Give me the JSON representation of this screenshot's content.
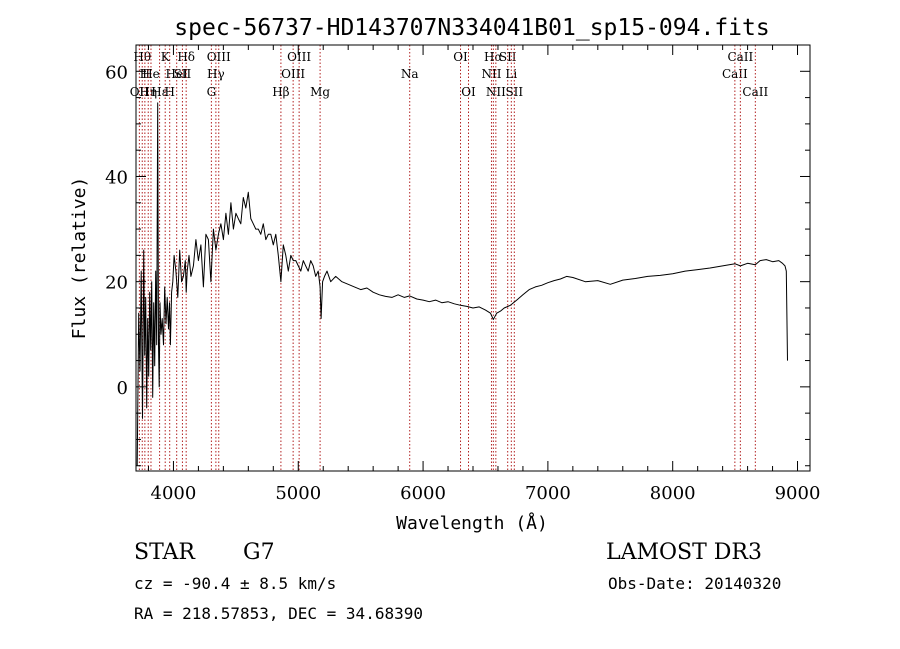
{
  "chart_data": {
    "type": "line",
    "title": "spec-56737-HD143707N334041B01_sp15-094.fits",
    "xlabel": "Wavelength (Å)",
    "ylabel": "Flux (relative)",
    "xlim": [
      3700,
      9100
    ],
    "ylim": [
      -16,
      65
    ],
    "xticks": [
      4000,
      5000,
      6000,
      7000,
      8000,
      9000
    ],
    "yticks": [
      0,
      20,
      40,
      60
    ],
    "x_minor_step": 200,
    "y_minor_step": 5,
    "line_color": "#000000",
    "marker_color": "#b22222",
    "series": [
      {
        "name": "flux",
        "x": [
          3710,
          3722,
          3732,
          3742,
          3752,
          3762,
          3770,
          3778,
          3786,
          3794,
          3802,
          3810,
          3818,
          3826,
          3834,
          3842,
          3850,
          3858,
          3866,
          3874,
          3880,
          3886,
          3892,
          3900,
          3910,
          3920,
          3930,
          3940,
          3950,
          3960,
          3968,
          3976,
          3985,
          3995,
          4005,
          4020,
          4035,
          4050,
          4065,
          4080,
          4095,
          4102,
          4110,
          4125,
          4140,
          4160,
          4180,
          4200,
          4220,
          4240,
          4260,
          4280,
          4300,
          4320,
          4340,
          4360,
          4380,
          4400,
          4420,
          4440,
          4460,
          4480,
          4500,
          4520,
          4540,
          4560,
          4580,
          4600,
          4620,
          4640,
          4660,
          4680,
          4700,
          4720,
          4740,
          4760,
          4780,
          4800,
          4820,
          4840,
          4861,
          4880,
          4900,
          4920,
          4940,
          4960,
          4980,
          5000,
          5020,
          5040,
          5060,
          5080,
          5100,
          5120,
          5140,
          5160,
          5175,
          5183,
          5195,
          5210,
          5230,
          5260,
          5300,
          5350,
          5400,
          5450,
          5500,
          5550,
          5600,
          5650,
          5700,
          5750,
          5800,
          5850,
          5893,
          5950,
          6000,
          6050,
          6100,
          6150,
          6200,
          6250,
          6300,
          6350,
          6400,
          6450,
          6500,
          6540,
          6563,
          6590,
          6620,
          6650,
          6700,
          6750,
          6800,
          6850,
          6900,
          6950,
          7000,
          7050,
          7100,
          7150,
          7200,
          7300,
          7400,
          7500,
          7600,
          7700,
          7800,
          7900,
          8000,
          8100,
          8200,
          8300,
          8400,
          8500,
          8542,
          8600,
          8662,
          8700,
          8750,
          8800,
          8850,
          8880,
          8900,
          8910,
          8920
        ],
        "values": [
          -15,
          14,
          3,
          22,
          -6,
          26,
          6,
          17,
          -4,
          13,
          2,
          18,
          7,
          20,
          -2,
          16,
          4,
          22,
          8,
          54,
          8,
          0,
          16,
          10,
          13,
          8,
          19,
          12,
          17,
          11,
          16,
          8,
          18,
          20,
          25,
          22,
          17,
          26,
          20,
          21,
          24,
          18,
          22,
          25,
          21,
          23,
          28,
          24,
          27,
          19,
          29,
          28,
          20,
          30,
          26,
          29,
          31,
          28,
          33,
          29,
          35,
          30,
          33,
          32,
          31,
          36,
          34,
          37,
          32,
          31,
          30,
          30,
          29,
          31,
          28,
          29,
          29,
          27,
          29,
          25,
          20,
          27,
          25,
          22,
          25,
          24,
          24,
          23,
          22,
          24,
          23,
          22,
          24,
          23,
          21,
          22,
          19,
          13,
          20,
          21,
          22,
          20,
          21,
          20,
          19.5,
          19,
          18.5,
          18.8,
          18,
          17.5,
          17.2,
          17,
          17.5,
          17,
          17.3,
          16.7,
          16.5,
          16.2,
          16.5,
          16,
          16.2,
          15.8,
          15.5,
          15.3,
          15,
          15.2,
          14.6,
          14,
          12.8,
          14,
          14.4,
          15,
          15.5,
          16.5,
          17.5,
          18.5,
          19,
          19.3,
          19.8,
          20.2,
          20.5,
          21,
          20.8,
          20,
          20.2,
          19.5,
          20.3,
          20.6,
          21,
          21.2,
          21.5,
          22,
          22.3,
          22.6,
          23,
          23.4,
          23,
          23.5,
          23.2,
          24,
          24.2,
          23.8,
          24,
          23.5,
          23,
          22,
          5
        ]
      }
    ],
    "line_markers": [
      {
        "x": 3727,
        "label": "OII",
        "row": 2
      },
      {
        "x": 3750,
        "label": "Hθ",
        "row": 0
      },
      {
        "x": 3771,
        "label": "H",
        "row": 1
      },
      {
        "x": 3798,
        "label": "Hη",
        "row": 2
      },
      {
        "x": 3820,
        "label": "He",
        "row": 1
      },
      {
        "x": 3889,
        "label": "Hε",
        "row": 2
      },
      {
        "x": 3934,
        "label": "K",
        "row": 0
      },
      {
        "x": 3970,
        "label": "H",
        "row": 2
      },
      {
        "x": 4026,
        "label": "HeI",
        "row": 1
      },
      {
        "x": 4072,
        "label": "SII",
        "row": 1
      },
      {
        "x": 4102,
        "label": "Hδ",
        "row": 0
      },
      {
        "x": 4304,
        "label": "G",
        "row": 2
      },
      {
        "x": 4340,
        "label": "Hγ",
        "row": 1
      },
      {
        "x": 4363,
        "label": "OIII",
        "row": 0
      },
      {
        "x": 4861,
        "label": "Hβ",
        "row": 2
      },
      {
        "x": 4959,
        "label": "OIII",
        "row": 1
      },
      {
        "x": 5007,
        "label": "OIII",
        "row": 0
      },
      {
        "x": 5175,
        "label": "Mg",
        "row": 2
      },
      {
        "x": 5893,
        "label": "Na",
        "row": 1
      },
      {
        "x": 6300,
        "label": "OI",
        "row": 0
      },
      {
        "x": 6364,
        "label": "OI",
        "row": 2
      },
      {
        "x": 6548,
        "label": "NII",
        "row": 1
      },
      {
        "x": 6563,
        "label": "Hα",
        "row": 0
      },
      {
        "x": 6583,
        "label": "NII",
        "row": 2
      },
      {
        "x": 6678,
        "label": "SII",
        "row": 0
      },
      {
        "x": 6707,
        "label": "Li",
        "row": 1
      },
      {
        "x": 6731,
        "label": "SII",
        "row": 2
      },
      {
        "x": 8498,
        "label": "CaII",
        "row": 1
      },
      {
        "x": 8542,
        "label": "CaII",
        "row": 0
      },
      {
        "x": 8662,
        "label": "CaII",
        "row": 2
      }
    ]
  },
  "info": {
    "object_class": "STAR",
    "subclass": "G7",
    "survey": "LAMOST DR3",
    "velocity": "cz = -90.4 ± 8.5 km/s",
    "obs_date": "Obs-Date: 20140320",
    "coords": "RA = 218.57853, DEC =  34.68390"
  }
}
